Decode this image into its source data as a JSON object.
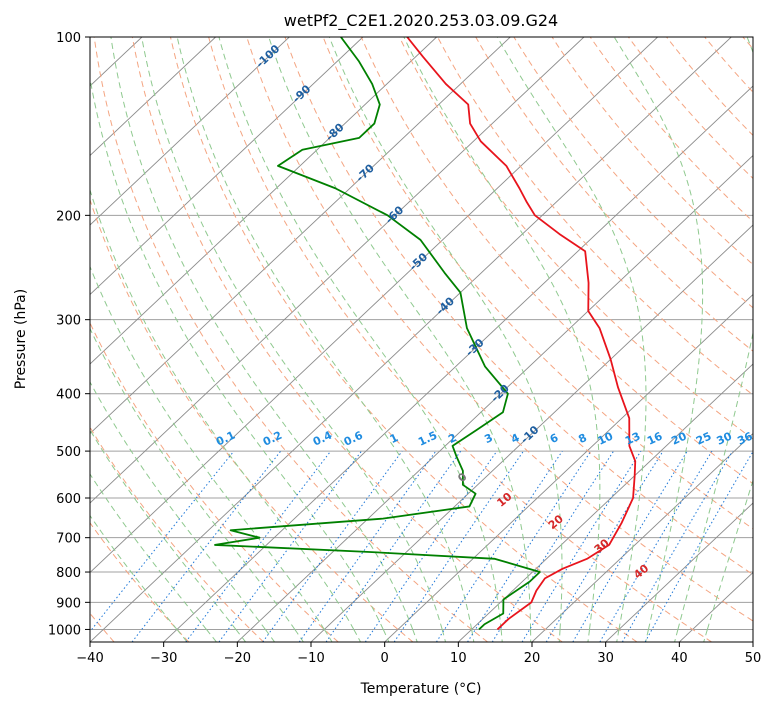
{
  "chart_data": {
    "type": "line",
    "subtype": "skew-T log-P diagram",
    "title": "wetPf2_C2E1.2020.253.03.09.G24",
    "xlabel": "Temperature (°C)",
    "ylabel": "Pressure (hPa)",
    "xlim": [
      -40,
      50
    ],
    "ylim": [
      1050,
      100
    ],
    "y_scale": "log",
    "x_ticks": [
      "−40",
      "−30",
      "−20",
      "−10",
      "0",
      "10",
      "20",
      "30",
      "40",
      "50"
    ],
    "y_ticks": [
      "100",
      "200",
      "300",
      "400",
      "500",
      "600",
      "700",
      "800",
      "900",
      "1000"
    ],
    "grid": true,
    "series": [
      {
        "color": "#e8141c",
        "points": [
          [
            13.5,
            1000
          ],
          [
            13.5,
            960
          ],
          [
            14.2,
            900
          ],
          [
            13.2,
            860
          ],
          [
            12.6,
            820
          ],
          [
            13.6,
            790
          ],
          [
            15.5,
            760
          ],
          [
            16.5,
            720
          ],
          [
            15.0,
            660
          ],
          [
            13.0,
            600
          ],
          [
            10.0,
            550
          ],
          [
            8.0,
            520
          ],
          [
            5.0,
            490
          ],
          [
            1.0,
            440
          ],
          [
            -5.0,
            390
          ],
          [
            -10.0,
            350
          ],
          [
            -16.0,
            310
          ],
          [
            -20.0,
            290
          ],
          [
            -24.0,
            260
          ],
          [
            -29.0,
            230
          ],
          [
            -35.0,
            215
          ],
          [
            -41.0,
            200
          ],
          [
            -44.0,
            190
          ],
          [
            -47.0,
            180
          ],
          [
            -52.0,
            165
          ],
          [
            -59.0,
            150
          ],
          [
            -63.0,
            140
          ],
          [
            -66.0,
            130
          ],
          [
            -72.0,
            120
          ],
          [
            -79.0,
            108
          ],
          [
            -84.0,
            100
          ]
        ]
      },
      {
        "color": "#008000",
        "points": [
          [
            11.0,
            1000
          ],
          [
            11.0,
            980
          ],
          [
            12.0,
            940
          ],
          [
            10.0,
            890
          ],
          [
            11.0,
            830
          ],
          [
            11.0,
            800
          ],
          [
            3.0,
            760
          ],
          [
            -15.0,
            740
          ],
          [
            -37.0,
            720
          ],
          [
            -32.0,
            700
          ],
          [
            -37.0,
            680
          ],
          [
            -18.0,
            650
          ],
          [
            -8.0,
            620
          ],
          [
            -9.0,
            590
          ],
          [
            -12.0,
            570
          ],
          [
            -14.0,
            540
          ],
          [
            -17.0,
            510
          ],
          [
            -19.0,
            490
          ],
          [
            -18.0,
            460
          ],
          [
            -17.0,
            430
          ],
          [
            -19.0,
            400
          ],
          [
            -26.0,
            360
          ],
          [
            -34.0,
            310
          ],
          [
            -40.0,
            270
          ],
          [
            -45.0,
            250
          ],
          [
            -53.0,
            220
          ],
          [
            -61.0,
            200
          ],
          [
            -72.0,
            180
          ],
          [
            -83.0,
            165
          ],
          [
            -82.0,
            155
          ],
          [
            -76.0,
            148
          ],
          [
            -76.0,
            140
          ],
          [
            -78.0,
            130
          ],
          [
            -82.0,
            120
          ],
          [
            -87.0,
            110
          ],
          [
            -93.0,
            100
          ]
        ]
      }
    ],
    "dry_adiabat_labels": [
      "-100",
      "-90",
      "-80",
      "-70",
      "-60",
      "-50",
      "-40",
      "-30",
      "-20",
      "-10"
    ],
    "moist_adiabat_labels": [
      "0",
      "10",
      "20",
      "30",
      "40"
    ],
    "mixing_ratio_labels": [
      "0.1",
      "0.2",
      "0.4",
      "0.6",
      "1",
      "1.5",
      "2",
      "3",
      "4",
      "6",
      "8",
      "10",
      "13",
      "16",
      "20",
      "25",
      "30",
      "36"
    ],
    "mixing_ratio_values": [
      0.1,
      0.2,
      0.4,
      0.6,
      1,
      1.5,
      2,
      3,
      4,
      6,
      8,
      10,
      13,
      16,
      20,
      25,
      30,
      36
    ],
    "colors": {
      "temperature": "#e8141c",
      "dewpoint": "#008000",
      "isotherm": "#8c8c8c",
      "isobar": "#a0a0a0",
      "dry_adiabat": "#f4a582",
      "moist_adiabat": "#8fc98f",
      "mixing_ratio": "#1f78d8",
      "dry_label": "#1f5fa0",
      "moist_label": "#d62728",
      "mixing_label": "#1f8ce0"
    }
  }
}
